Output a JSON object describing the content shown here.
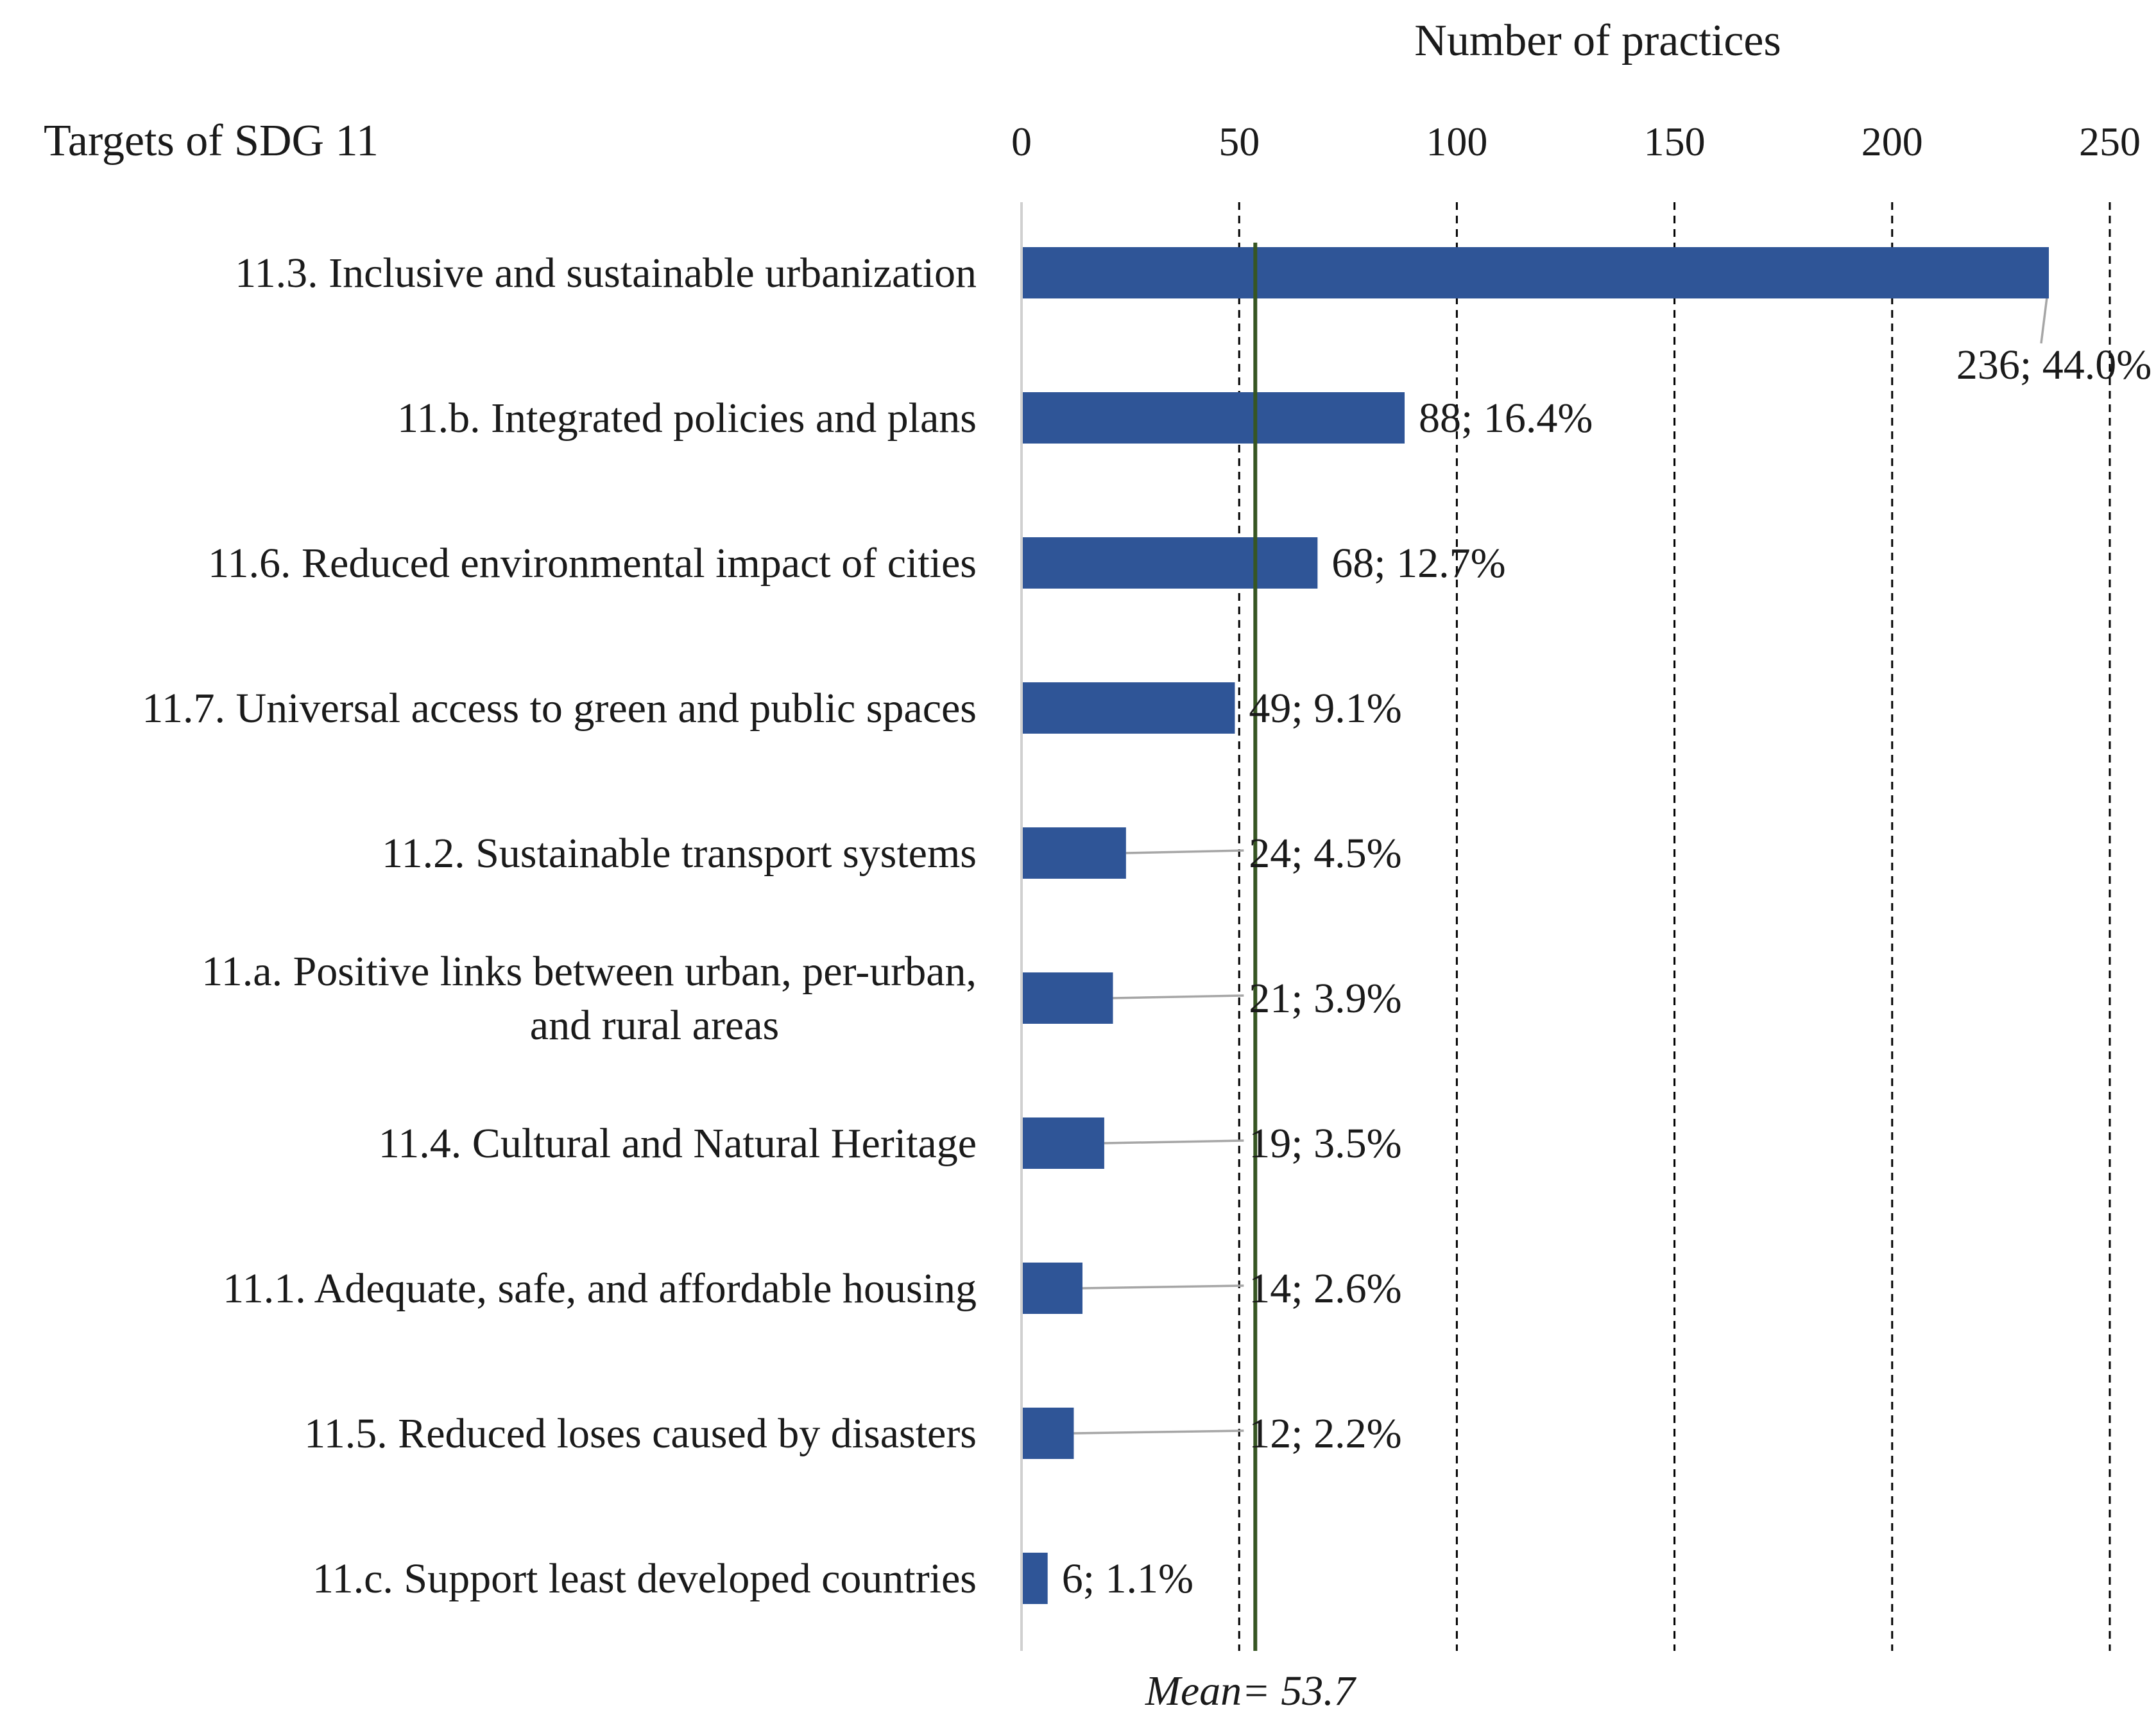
{
  "chart_data": {
    "type": "bar",
    "orientation": "horizontal",
    "title": "Number of practices",
    "ylabel": "Targets of SDG 11",
    "xlim": [
      0,
      250
    ],
    "ticks": [
      0,
      50,
      100,
      150,
      200,
      250
    ],
    "tick_labels": [
      "0",
      "50",
      "100",
      "150",
      "200",
      "250"
    ],
    "grid": "dashed vertical",
    "categories": [
      [
        "11.3. Inclusive and sustainable urbanization"
      ],
      [
        "11.b. Integrated policies and plans"
      ],
      [
        "11.6. Reduced environmental impact of cities"
      ],
      [
        "11.7. Universal access to green and public spaces"
      ],
      [
        "11.2. Sustainable transport systems"
      ],
      [
        "11.a. Positive links between urban, per-urban,",
        "and rural areas"
      ],
      [
        "11.4. Cultural and Natural Heritage"
      ],
      [
        "11.1. Adequate, safe, and affordable housing"
      ],
      [
        "11.5. Reduced loses caused by disasters"
      ],
      [
        "11.c. Support least developed countries"
      ]
    ],
    "values": [
      236,
      88,
      68,
      49,
      24,
      21,
      19,
      14,
      12,
      6
    ],
    "data_labels": [
      "236; 44.0%",
      "88; 16.4%",
      "68; 12.7%",
      "49; 9.1%",
      "24; 4.5%",
      "21; 3.9%",
      "19; 3.5%",
      "14; 2.6%",
      "12; 2.2%",
      "6; 1.1%"
    ],
    "mean": {
      "value": 53.7,
      "label": "Mean= 53.7"
    }
  },
  "colors": {
    "bar": "#2f5597",
    "mean": "#375623",
    "text": "#1a1a1a"
  }
}
